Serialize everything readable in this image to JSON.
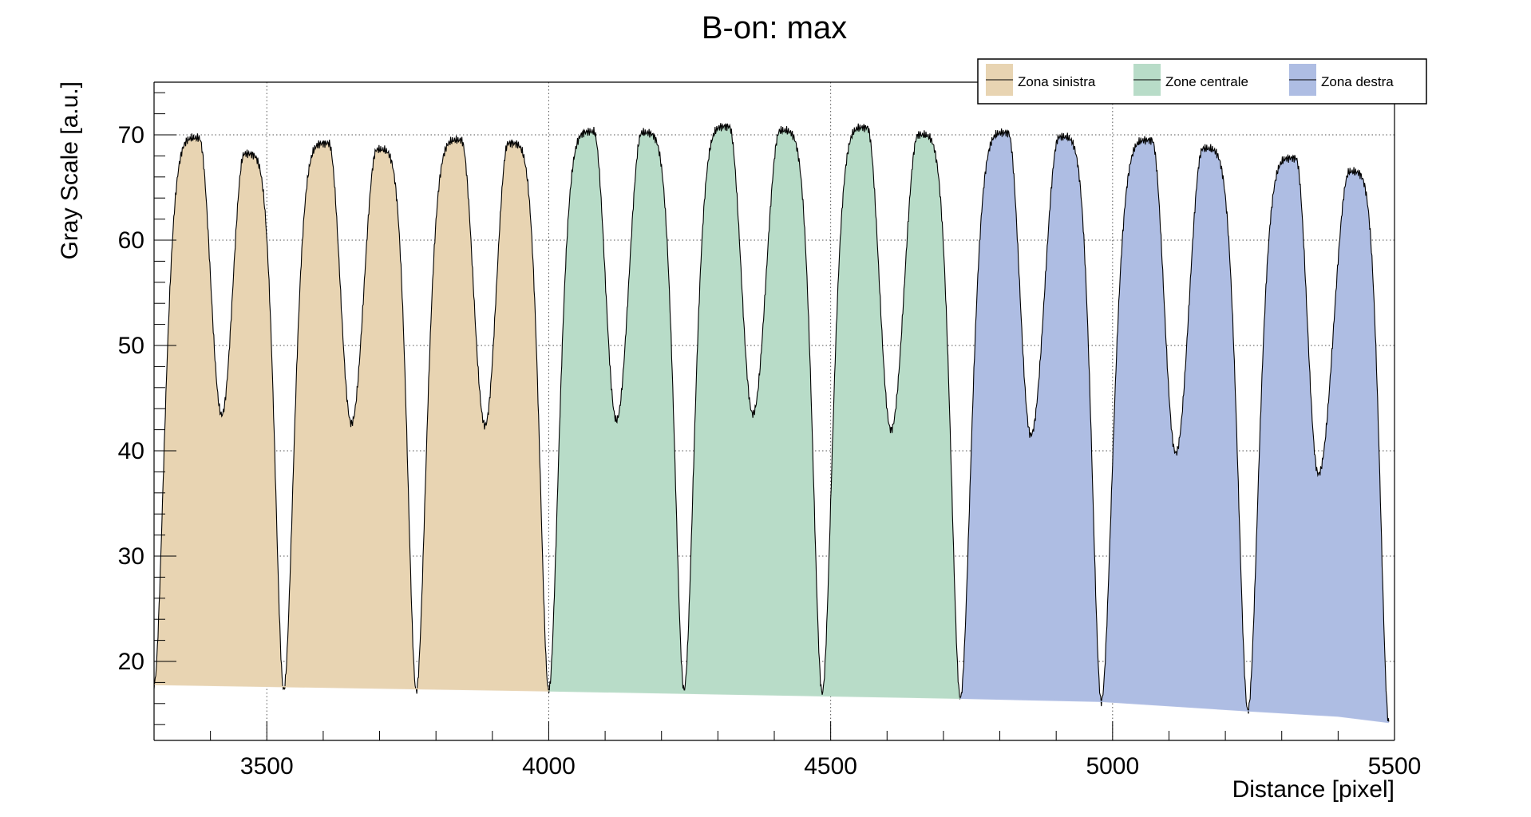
{
  "chart_data": {
    "type": "area",
    "title": "B-on: max",
    "xlabel": "Distance [pixel]",
    "ylabel": "Gray Scale [a.u.]",
    "xlim": [
      3300,
      5500
    ],
    "ylim": [
      12.5,
      75
    ],
    "x_major_ticks": [
      3500,
      4000,
      4500,
      5000,
      5500
    ],
    "x_tick_labels": [
      "3500",
      "4000",
      "4500",
      "5000",
      "5500"
    ],
    "y_major_ticks": [
      20,
      30,
      40,
      50,
      60,
      70
    ],
    "y_tick_labels": [
      "20",
      "30",
      "40",
      "50",
      "60",
      "70"
    ],
    "grid": "dotted",
    "legend_position": "top-right",
    "series": [
      {
        "name": "Zona sinistra",
        "color": "#e8d4b2",
        "x_range": [
          3300,
          4000
        ],
        "baseline": [
          [
            3300,
            17.8
          ],
          [
            4000,
            17.2
          ]
        ],
        "minima": [
          [
            3300,
            17.8
          ],
          [
            3530,
            17.3
          ],
          [
            3765,
            17.2
          ],
          [
            4000,
            17.2
          ]
        ],
        "peaks": [
          [
            3380,
            69.7
          ],
          [
            3460,
            68.2
          ],
          [
            3610,
            69.2
          ],
          [
            3695,
            68.6
          ],
          [
            3845,
            69.5
          ],
          [
            3928,
            69.2
          ]
        ],
        "dips": [
          [
            3420,
            43.4
          ],
          [
            3650,
            42.6
          ],
          [
            3887,
            42.4
          ]
        ]
      },
      {
        "name": "Zone centrale",
        "color": "#b8dcc8",
        "x_range": [
          4000,
          4730
        ],
        "baseline": [
          [
            4000,
            17.2
          ],
          [
            4730,
            16.5
          ]
        ],
        "minima": [
          [
            4000,
            17.2
          ],
          [
            4240,
            17.3
          ],
          [
            4485,
            17.0
          ],
          [
            4730,
            16.5
          ]
        ],
        "peaks": [
          [
            4080,
            70.3
          ],
          [
            4165,
            70.2
          ],
          [
            4320,
            70.8
          ],
          [
            4410,
            70.4
          ],
          [
            4565,
            70.7
          ],
          [
            4655,
            70.0
          ]
        ],
        "dips": [
          [
            4120,
            42.9
          ],
          [
            4362,
            43.5
          ],
          [
            4607,
            42.0
          ]
        ]
      },
      {
        "name": "Zona destra",
        "color": "#aebde3",
        "x_range": [
          4730,
          5490
        ],
        "baseline": [
          [
            4730,
            16.5
          ],
          [
            4980,
            16.2
          ],
          [
            5240,
            15.3
          ],
          [
            5400,
            14.8
          ],
          [
            5490,
            14.2
          ]
        ],
        "minima": [
          [
            4730,
            16.5
          ],
          [
            4980,
            16.2
          ],
          [
            5240,
            15.3
          ],
          [
            5490,
            14.2
          ]
        ],
        "peaks": [
          [
            4815,
            70.2
          ],
          [
            4905,
            69.8
          ],
          [
            5070,
            69.5
          ],
          [
            5160,
            68.7
          ],
          [
            5325,
            67.8
          ],
          [
            5420,
            66.5
          ]
        ],
        "dips": [
          [
            4855,
            41.5
          ],
          [
            5112,
            39.8
          ],
          [
            5365,
            37.8
          ]
        ]
      }
    ]
  }
}
